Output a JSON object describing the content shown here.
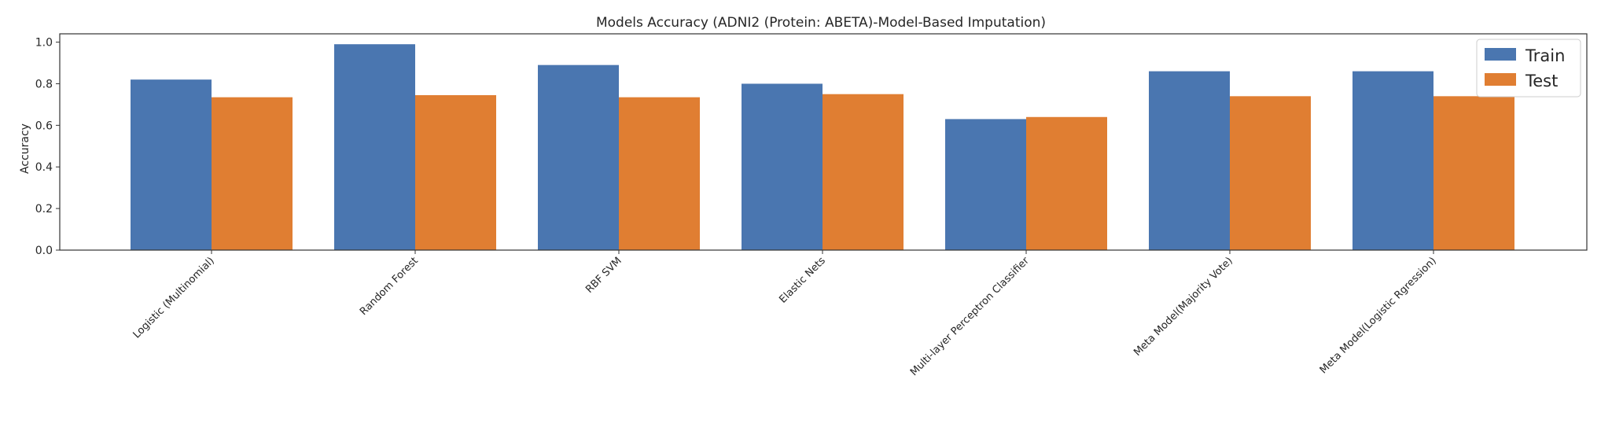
{
  "chart_data": {
    "type": "bar",
    "title": "Models Accuracy (ADNI2 (Protein: ABETA)-Model-Based Imputation)",
    "xlabel": "",
    "ylabel": "Accuracy",
    "ylim": [
      0,
      1.04
    ],
    "yticks": [
      "0.0",
      "0.2",
      "0.4",
      "0.6",
      "0.8",
      "1.0"
    ],
    "categories": [
      "Logistic (Multinomial)",
      "Random Forest",
      "RBF SVM",
      "Elastic Nets",
      "Multi-layer Perceptron Classifier",
      "Meta Model(Majority Vote)",
      "Meta Model(Logistic Rgression)"
    ],
    "series": [
      {
        "name": "Train",
        "color": "#4a76b0",
        "values": [
          0.82,
          0.99,
          0.89,
          0.8,
          0.63,
          0.86,
          0.86
        ]
      },
      {
        "name": "Test",
        "color": "#e07e32",
        "values": [
          0.735,
          0.745,
          0.735,
          0.75,
          0.64,
          0.74,
          0.74
        ]
      }
    ],
    "grid": false,
    "legend_position": "top-right"
  }
}
